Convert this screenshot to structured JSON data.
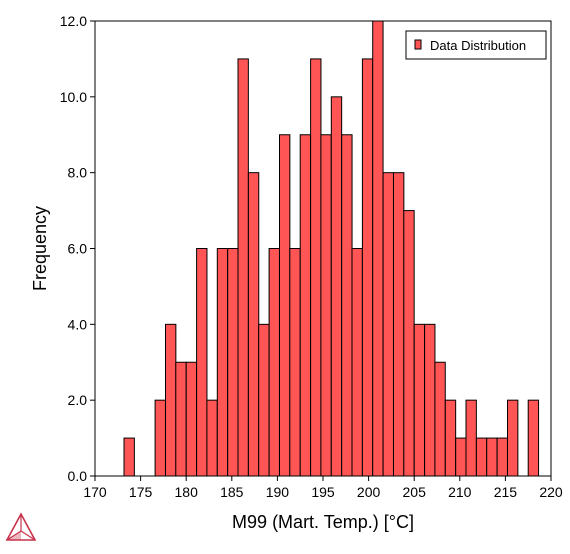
{
  "chart_data": {
    "type": "bar",
    "title": "",
    "xlabel": "M99 (Mart. Temp.) [°C]",
    "ylabel": "Frequency",
    "xlim": [
      170,
      220
    ],
    "ylim": [
      0,
      12
    ],
    "xticks": [
      "170",
      "175",
      "180",
      "185",
      "190",
      "195",
      "200",
      "205",
      "210",
      "215",
      "220"
    ],
    "yticks": [
      "0.0",
      "2.0",
      "4.0",
      "6.0",
      "8.0",
      "10.0",
      "12.0"
    ],
    "bin_width": 1.1364,
    "legend": {
      "position": "top-right",
      "entries": [
        "Data Distribution"
      ]
    },
    "bar_color": "#ff5555",
    "bar_edge_color": "#000000",
    "bins": [
      {
        "start": 173.18,
        "value": 1
      },
      {
        "start": 174.32,
        "value": 0
      },
      {
        "start": 175.45,
        "value": 0
      },
      {
        "start": 176.59,
        "value": 2
      },
      {
        "start": 177.73,
        "value": 4
      },
      {
        "start": 178.86,
        "value": 3
      },
      {
        "start": 180.0,
        "value": 3
      },
      {
        "start": 181.14,
        "value": 6
      },
      {
        "start": 182.27,
        "value": 2
      },
      {
        "start": 183.41,
        "value": 6
      },
      {
        "start": 184.55,
        "value": 6
      },
      {
        "start": 185.68,
        "value": 11
      },
      {
        "start": 186.82,
        "value": 8
      },
      {
        "start": 187.95,
        "value": 4
      },
      {
        "start": 189.09,
        "value": 6
      },
      {
        "start": 190.23,
        "value": 9
      },
      {
        "start": 191.36,
        "value": 6
      },
      {
        "start": 192.5,
        "value": 9
      },
      {
        "start": 193.64,
        "value": 11
      },
      {
        "start": 194.77,
        "value": 9
      },
      {
        "start": 195.91,
        "value": 10
      },
      {
        "start": 197.05,
        "value": 9
      },
      {
        "start": 198.18,
        "value": 6
      },
      {
        "start": 199.32,
        "value": 11
      },
      {
        "start": 200.45,
        "value": 12
      },
      {
        "start": 201.59,
        "value": 8
      },
      {
        "start": 202.73,
        "value": 8
      },
      {
        "start": 203.86,
        "value": 7
      },
      {
        "start": 205.0,
        "value": 4
      },
      {
        "start": 206.14,
        "value": 4
      },
      {
        "start": 207.27,
        "value": 3
      },
      {
        "start": 208.41,
        "value": 2
      },
      {
        "start": 209.55,
        "value": 1
      },
      {
        "start": 210.68,
        "value": 2
      },
      {
        "start": 211.82,
        "value": 1
      },
      {
        "start": 212.95,
        "value": 1
      },
      {
        "start": 214.09,
        "value": 1
      },
      {
        "start": 215.23,
        "value": 2
      },
      {
        "start": 216.36,
        "value": 0
      },
      {
        "start": 217.5,
        "value": 2
      }
    ]
  },
  "logo": {
    "name": "thermo-calc-logo-icon",
    "color": "#c8324b"
  }
}
